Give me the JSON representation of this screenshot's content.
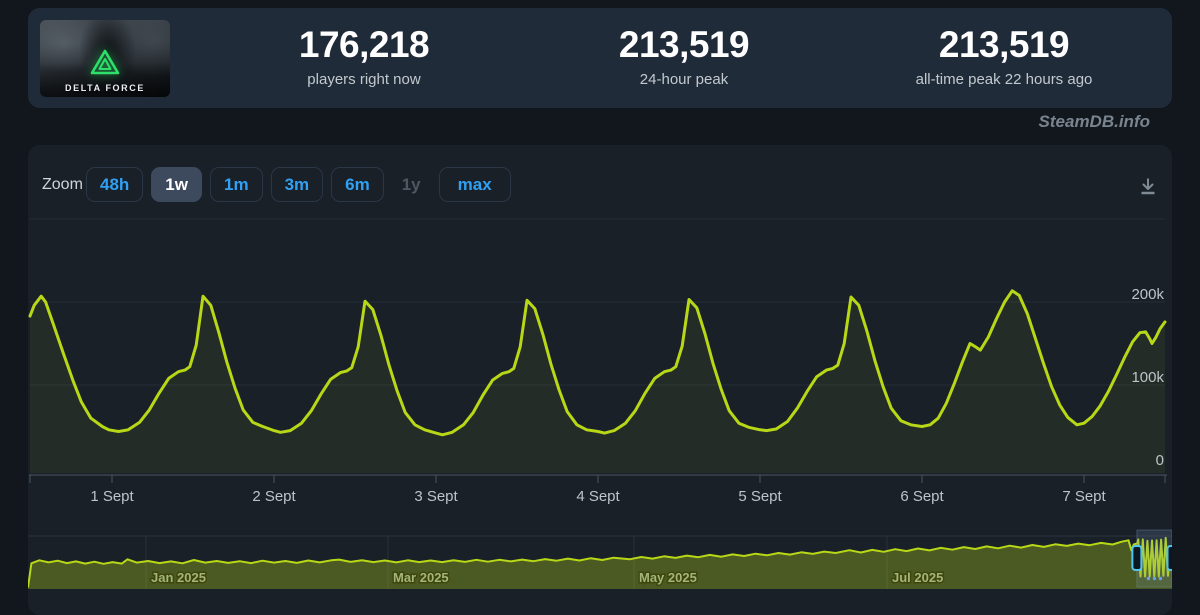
{
  "game": {
    "name": "DELTA FORCE",
    "logo_color": "#2ee06a"
  },
  "stats": [
    {
      "value": "176,218",
      "label": "players right now"
    },
    {
      "value": "213,519",
      "label": "24-hour peak"
    },
    {
      "value": "213,519",
      "label": "all-time peak 22 hours ago"
    }
  ],
  "watermark": "SteamDB.info",
  "toolbar": {
    "zoom_label": "Zoom",
    "buttons": [
      {
        "label": "48h",
        "state": "normal"
      },
      {
        "label": "1w",
        "state": "selected"
      },
      {
        "label": "1m",
        "state": "normal"
      },
      {
        "label": "3m",
        "state": "normal"
      },
      {
        "label": "6m",
        "state": "normal"
      },
      {
        "label": "1y",
        "state": "disabled"
      },
      {
        "label": "max",
        "state": "normal"
      }
    ],
    "download_icon": "download-icon"
  },
  "chart_data": {
    "main_chart": {
      "type": "line",
      "line_color": "#b7d717",
      "accent_blue": "#31a0f2",
      "x_tick_labels": [
        "1 Sept",
        "2 Sept",
        "3 Sept",
        "4 Sept",
        "5 Sept",
        "6 Sept",
        "7 Sept"
      ],
      "y_ticks": [
        {
          "label": "200k",
          "value": 200
        },
        {
          "label": "100k",
          "value": 100
        },
        {
          "label": "0",
          "value": 0
        }
      ],
      "y_gridline_values": [
        300,
        200,
        100
      ],
      "points_unit": "days since first labelled tick midnight, concurrent players in thousands",
      "points": [
        [
          -0.506,
          183
        ],
        [
          -0.48,
          196
        ],
        [
          -0.437,
          207
        ],
        [
          -0.41,
          200
        ],
        [
          -0.36,
          172
        ],
        [
          -0.3,
          138
        ],
        [
          -0.24,
          105
        ],
        [
          -0.19,
          80
        ],
        [
          -0.13,
          60
        ],
        [
          -0.06,
          50
        ],
        [
          -0.02,
          46
        ],
        [
          0.04,
          44
        ],
        [
          0.1,
          46
        ],
        [
          0.17,
          55
        ],
        [
          0.23,
          70
        ],
        [
          0.29,
          90
        ],
        [
          0.35,
          108
        ],
        [
          0.41,
          116
        ],
        [
          0.45,
          118
        ],
        [
          0.48,
          122
        ],
        [
          0.52,
          148
        ],
        [
          0.562,
          207
        ],
        [
          0.61,
          196
        ],
        [
          0.66,
          163
        ],
        [
          0.71,
          127
        ],
        [
          0.76,
          96
        ],
        [
          0.81,
          70
        ],
        [
          0.87,
          55
        ],
        [
          0.93,
          50
        ],
        [
          1.0,
          45
        ],
        [
          1.04,
          43
        ],
        [
          1.1,
          45
        ],
        [
          1.17,
          54
        ],
        [
          1.23,
          69
        ],
        [
          1.29,
          89
        ],
        [
          1.35,
          107
        ],
        [
          1.41,
          115
        ],
        [
          1.45,
          117
        ],
        [
          1.48,
          121
        ],
        [
          1.52,
          146
        ],
        [
          1.562,
          201
        ],
        [
          1.61,
          191
        ],
        [
          1.66,
          160
        ],
        [
          1.71,
          124
        ],
        [
          1.76,
          93
        ],
        [
          1.81,
          67
        ],
        [
          1.87,
          52
        ],
        [
          1.93,
          46
        ],
        [
          2.0,
          42
        ],
        [
          2.04,
          40
        ],
        [
          2.1,
          43
        ],
        [
          2.17,
          52
        ],
        [
          2.23,
          67
        ],
        [
          2.29,
          88
        ],
        [
          2.35,
          106
        ],
        [
          2.41,
          114
        ],
        [
          2.45,
          116
        ],
        [
          2.48,
          120
        ],
        [
          2.52,
          146
        ],
        [
          2.562,
          202
        ],
        [
          2.61,
          192
        ],
        [
          2.66,
          161
        ],
        [
          2.71,
          125
        ],
        [
          2.76,
          94
        ],
        [
          2.81,
          68
        ],
        [
          2.87,
          52
        ],
        [
          2.93,
          46
        ],
        [
          3.0,
          44
        ],
        [
          3.04,
          42
        ],
        [
          3.1,
          45
        ],
        [
          3.17,
          54
        ],
        [
          3.23,
          69
        ],
        [
          3.29,
          90
        ],
        [
          3.35,
          108
        ],
        [
          3.41,
          116
        ],
        [
          3.45,
          118
        ],
        [
          3.48,
          122
        ],
        [
          3.52,
          147
        ],
        [
          3.562,
          203
        ],
        [
          3.61,
          193
        ],
        [
          3.66,
          162
        ],
        [
          3.71,
          126
        ],
        [
          3.76,
          95
        ],
        [
          3.81,
          69
        ],
        [
          3.87,
          54
        ],
        [
          3.93,
          49
        ],
        [
          4.0,
          46
        ],
        [
          4.04,
          45
        ],
        [
          4.1,
          47
        ],
        [
          4.17,
          56
        ],
        [
          4.23,
          72
        ],
        [
          4.29,
          92
        ],
        [
          4.35,
          110
        ],
        [
          4.41,
          118
        ],
        [
          4.45,
          120
        ],
        [
          4.48,
          124
        ],
        [
          4.52,
          150
        ],
        [
          4.562,
          206
        ],
        [
          4.61,
          196
        ],
        [
          4.66,
          165
        ],
        [
          4.71,
          129
        ],
        [
          4.76,
          98
        ],
        [
          4.81,
          72
        ],
        [
          4.87,
          57
        ],
        [
          4.93,
          52
        ],
        [
          5.0,
          50
        ],
        [
          5.05,
          52
        ],
        [
          5.1,
          60
        ],
        [
          5.15,
          78
        ],
        [
          5.2,
          102
        ],
        [
          5.25,
          128
        ],
        [
          5.296,
          150
        ],
        [
          5.33,
          146
        ],
        [
          5.36,
          142
        ],
        [
          5.41,
          158
        ],
        [
          5.46,
          180
        ],
        [
          5.51,
          200
        ],
        [
          5.557,
          213.5
        ],
        [
          5.6,
          208
        ],
        [
          5.65,
          186
        ],
        [
          5.7,
          156
        ],
        [
          5.75,
          126
        ],
        [
          5.8,
          98
        ],
        [
          5.85,
          76
        ],
        [
          5.9,
          61
        ],
        [
          5.956,
          52
        ],
        [
          6.0,
          54
        ],
        [
          6.05,
          62
        ],
        [
          6.1,
          75
        ],
        [
          6.15,
          92
        ],
        [
          6.2,
          112
        ],
        [
          6.25,
          133
        ],
        [
          6.3,
          152
        ],
        [
          6.345,
          163
        ],
        [
          6.38,
          164
        ],
        [
          6.405,
          156
        ],
        [
          6.42,
          150
        ],
        [
          6.445,
          158
        ],
        [
          6.47,
          168
        ],
        [
          6.5,
          176
        ]
      ]
    },
    "navigator": {
      "type": "area",
      "month_labels": [
        "Jan 2025",
        "Mar 2025",
        "May 2025",
        "Jul 2025"
      ],
      "points_unit": "fraction of navigator width, concurrent players in thousands",
      "points": [
        [
          0.0,
          2
        ],
        [
          0.003,
          105
        ],
        [
          0.01,
          118
        ],
        [
          0.018,
          109
        ],
        [
          0.026,
          116
        ],
        [
          0.034,
          106
        ],
        [
          0.042,
          113
        ],
        [
          0.05,
          104
        ],
        [
          0.058,
          112
        ],
        [
          0.066,
          103
        ],
        [
          0.074,
          110
        ],
        [
          0.082,
          104
        ],
        [
          0.087,
          122
        ],
        [
          0.095,
          108
        ],
        [
          0.105,
          115
        ],
        [
          0.115,
          106
        ],
        [
          0.125,
          113
        ],
        [
          0.135,
          105
        ],
        [
          0.145,
          119
        ],
        [
          0.155,
          108
        ],
        [
          0.165,
          115
        ],
        [
          0.175,
          107
        ],
        [
          0.185,
          114
        ],
        [
          0.195,
          106
        ],
        [
          0.205,
          116
        ],
        [
          0.215,
          108
        ],
        [
          0.225,
          115
        ],
        [
          0.235,
          107
        ],
        [
          0.245,
          117
        ],
        [
          0.255,
          109
        ],
        [
          0.265,
          118
        ],
        [
          0.272,
          121
        ],
        [
          0.282,
          111
        ],
        [
          0.292,
          118
        ],
        [
          0.302,
          110
        ],
        [
          0.312,
          117
        ],
        [
          0.322,
          109
        ],
        [
          0.332,
          118
        ],
        [
          0.342,
          110
        ],
        [
          0.352,
          117
        ],
        [
          0.362,
          110
        ],
        [
          0.372,
          118
        ],
        [
          0.382,
          111
        ],
        [
          0.392,
          120
        ],
        [
          0.402,
          112
        ],
        [
          0.412,
          120
        ],
        [
          0.422,
          113
        ],
        [
          0.432,
          121
        ],
        [
          0.442,
          114
        ],
        [
          0.452,
          123
        ],
        [
          0.462,
          116
        ],
        [
          0.472,
          125
        ],
        [
          0.482,
          117
        ],
        [
          0.492,
          127
        ],
        [
          0.502,
          119
        ],
        [
          0.512,
          129
        ],
        [
          0.526,
          122
        ],
        [
          0.536,
          132
        ],
        [
          0.546,
          125
        ],
        [
          0.556,
          135
        ],
        [
          0.566,
          128
        ],
        [
          0.576,
          138
        ],
        [
          0.586,
          131
        ],
        [
          0.596,
          141
        ],
        [
          0.606,
          133
        ],
        [
          0.616,
          143
        ],
        [
          0.626,
          136
        ],
        [
          0.636,
          146
        ],
        [
          0.646,
          139
        ],
        [
          0.656,
          149
        ],
        [
          0.666,
          142
        ],
        [
          0.676,
          152
        ],
        [
          0.686,
          145
        ],
        [
          0.696,
          155
        ],
        [
          0.706,
          149
        ],
        [
          0.718,
          161
        ],
        [
          0.728,
          151
        ],
        [
          0.738,
          162
        ],
        [
          0.748,
          154
        ],
        [
          0.758,
          165
        ],
        [
          0.768,
          157
        ],
        [
          0.778,
          168
        ],
        [
          0.788,
          160
        ],
        [
          0.798,
          171
        ],
        [
          0.808,
          163
        ],
        [
          0.818,
          174
        ],
        [
          0.828,
          166
        ],
        [
          0.838,
          177
        ],
        [
          0.848,
          169
        ],
        [
          0.858,
          180
        ],
        [
          0.868,
          172
        ],
        [
          0.878,
          183
        ],
        [
          0.888,
          175
        ],
        [
          0.898,
          186
        ],
        [
          0.908,
          179
        ],
        [
          0.918,
          189
        ],
        [
          0.928,
          182
        ],
        [
          0.938,
          192
        ],
        [
          0.948,
          185
        ],
        [
          0.956,
          197
        ],
        [
          0.962,
          203
        ],
        [
          0.9645,
          160
        ],
        [
          0.9665,
          185
        ],
        [
          0.9695,
          190
        ],
        [
          0.9705,
          207
        ],
        [
          0.9725,
          49
        ],
        [
          0.9745,
          207
        ],
        [
          0.9765,
          49
        ],
        [
          0.9785,
          201
        ],
        [
          0.9805,
          49
        ],
        [
          0.9825,
          202
        ],
        [
          0.9845,
          49
        ],
        [
          0.9865,
          203
        ],
        [
          0.9885,
          50
        ],
        [
          0.9905,
          206
        ],
        [
          0.9925,
          52
        ],
        [
          0.9945,
          213
        ],
        [
          0.9965,
          52
        ],
        [
          0.9985,
          165
        ],
        [
          1.0,
          176
        ]
      ],
      "window": {
        "start": 0.9693,
        "end": 1.0
      }
    }
  }
}
